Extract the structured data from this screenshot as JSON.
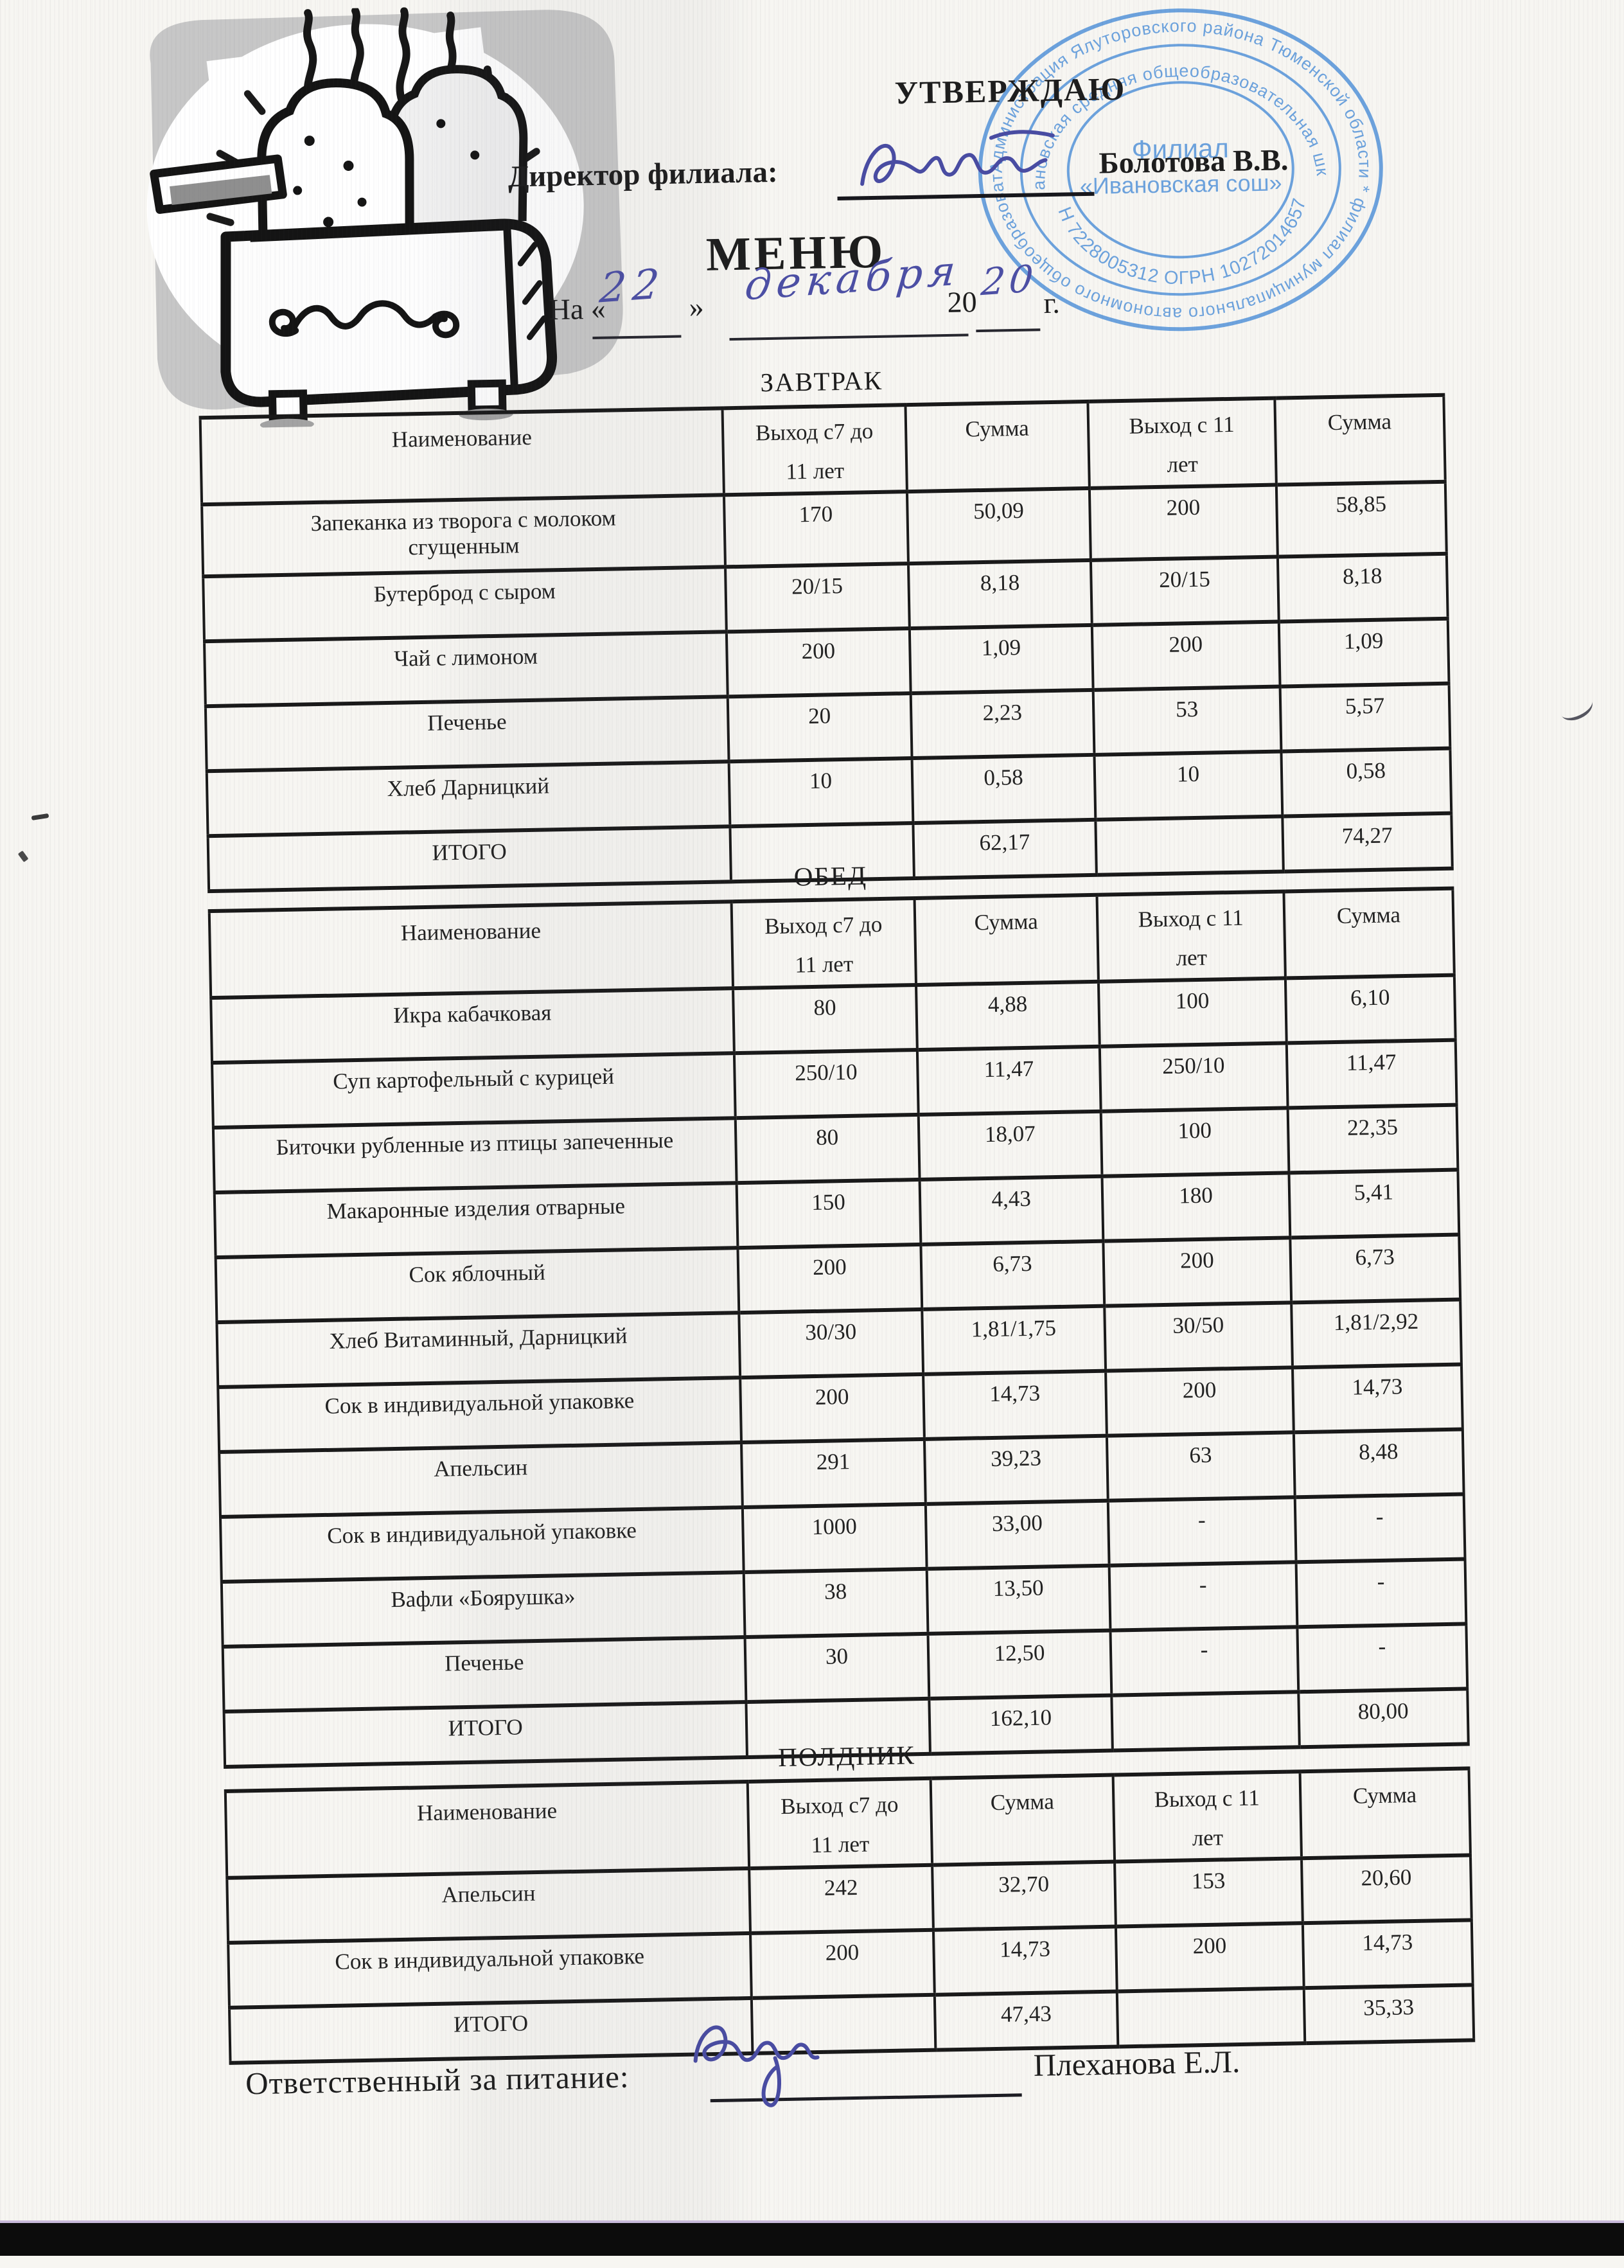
{
  "page": {
    "title": "МЕНЮ"
  },
  "approval": {
    "approve_word": "УТВЕРЖДАЮ",
    "director_label": "Директор филиала:",
    "director_name": "Болотова В.В."
  },
  "stamp": {
    "ring_outer": "Администрация Ялуторовского района Тюменской области * филиал муниципального автономного общеобразовательного учреждения *",
    "ring_middle_top": "«Ивановская средняя общеобразовательная школа»",
    "ring_middle_bottom": "ИНН 7228005312 ОГРН 1027201465741",
    "center_line1": "Филиал",
    "center_line2": "«Ивановская сош»",
    "ink_color": "#4a8ed8"
  },
  "date_line": {
    "prefix": "На «",
    "day": "22",
    "close_quote": "»",
    "month": "декабря",
    "year_printed": "20",
    "year_written": "20",
    "year_suffix": "г."
  },
  "ink": {
    "handwriting_color": "#4c4fa5",
    "stamp_blue": "#4a8ed8"
  },
  "meals": [
    {
      "heading": "ЗАВТРАК",
      "headers": [
        "Наименование",
        "Выход с7 до\n11 лет",
        "Сумма",
        "Выход с 11\nлет",
        "Сумма"
      ],
      "rows": [
        [
          "Запеканка из творога с молоком\nсгущенным",
          "170",
          "50,09",
          "200",
          "58,85"
        ],
        [
          "Бутерброд с сыром",
          "20/15",
          "8,18",
          "20/15",
          "8,18"
        ],
        [
          "Чай с лимоном",
          "200",
          "1,09",
          "200",
          "1,09"
        ],
        [
          "Печенье",
          "20",
          "2,23",
          "53",
          "5,57"
        ],
        [
          "Хлеб Дарницкий",
          "10",
          "0,58",
          "10",
          "0,58"
        ],
        [
          "ИТОГО",
          "",
          "62,17",
          "",
          "74,27"
        ]
      ]
    },
    {
      "heading": "ОБЕД",
      "headers": [
        "Наименование",
        "Выход с7 до\n11 лет",
        "Сумма",
        "Выход с 11\nлет",
        "Сумма"
      ],
      "rows": [
        [
          "Икра кабачковая",
          "80",
          "4,88",
          "100",
          "6,10"
        ],
        [
          "Суп картофельный с курицей",
          "250/10",
          "11,47",
          "250/10",
          "11,47"
        ],
        [
          "Биточки рубленные из птицы запеченные",
          "80",
          "18,07",
          "100",
          "22,35"
        ],
        [
          "Макаронные изделия отварные",
          "150",
          "4,43",
          "180",
          "5,41"
        ],
        [
          "Сок яблочный",
          "200",
          "6,73",
          "200",
          "6,73"
        ],
        [
          "Хлеб Витаминный, Дарницкий",
          "30/30",
          "1,81/1,75",
          "30/50",
          "1,81/2,92"
        ],
        [
          "Сок в индивидуальной упаковке",
          "200",
          "14,73",
          "200",
          "14,73"
        ],
        [
          "Апельсин",
          "291",
          "39,23",
          "63",
          "8,48"
        ],
        [
          "Сок в индивидуальной упаковке",
          "1000",
          "33,00",
          "-",
          "-"
        ],
        [
          "Вафли «Боярушка»",
          "38",
          "13,50",
          "-",
          "-"
        ],
        [
          "Печенье",
          "30",
          "12,50",
          "-",
          "-"
        ],
        [
          "ИТОГО",
          "",
          "162,10",
          "",
          "80,00"
        ]
      ]
    },
    {
      "heading": "ПОЛДНИК",
      "headers": [
        "Наименование",
        "Выход с7 до\n11 лет",
        "Сумма",
        "Выход с 11\nлет",
        "Сумма"
      ],
      "rows": [
        [
          "Апельсин",
          "242",
          "32,70",
          "153",
          "20,60"
        ],
        [
          "Сок в индивидуальной упаковке",
          "200",
          "14,73",
          "200",
          "14,73"
        ],
        [
          "ИТОГО",
          "",
          "47,43",
          "",
          "35,33"
        ]
      ]
    }
  ],
  "footer": {
    "responsible_label": "Ответственный за питание:",
    "responsible_name": "Плеханова Е.Л."
  }
}
